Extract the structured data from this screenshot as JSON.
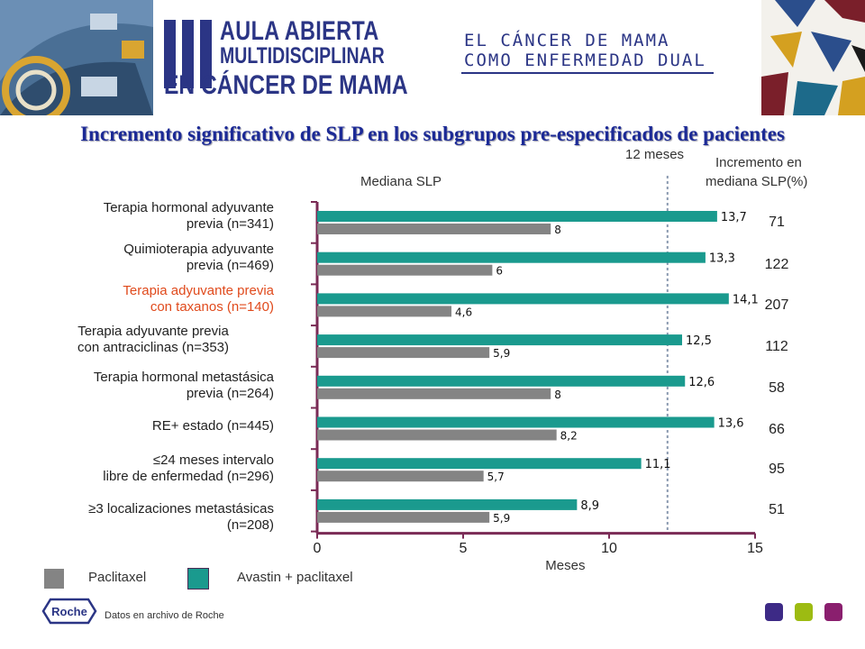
{
  "header": {
    "logo_line1": "AULA ABIERTA",
    "logo_line2": "MULTIDISCIPLINAR",
    "logo_line3": "EN CÁNCER DE MAMA",
    "conference_line1": "EL CÁNCER DE MAMA",
    "conference_line2": "COMO ENFERMEDAD DUAL"
  },
  "title": "Incremento significativo de SLP en los subgrupos pre-especificados de pacientes",
  "labels": {
    "mediana": "Mediana SLP",
    "reference": "12 meses",
    "increment_line1": "Incremento en",
    "increment_line2": "mediana SLP(%)"
  },
  "rows": [
    {
      "line1": "Terapia hormonal adyuvante",
      "line2": "previa (n=341)",
      "highlight": false,
      "increment": "71"
    },
    {
      "line1": "Quimioterapia adyuvante",
      "line2": "previa (n=469)",
      "highlight": false,
      "increment": "122"
    },
    {
      "line1": "Terapia adyuvante previa",
      "line2": "con taxanos (n=140)",
      "highlight": true,
      "increment": "207"
    },
    {
      "line1": "Terapia adyuvante previa",
      "line2": "con antraciclinas (n=353)",
      "highlight": false,
      "increment": "112"
    },
    {
      "line1": "Terapia hormonal metastásica",
      "line2": "previa (n=264)",
      "highlight": false,
      "increment": "58"
    },
    {
      "line1": "RE+ estado (n=445)",
      "line2": "",
      "highlight": false,
      "increment": "66"
    },
    {
      "line1": "≤24 meses intervalo",
      "line2": "libre de enfermedad (n=296)",
      "highlight": false,
      "increment": "95"
    },
    {
      "line1": "≥3 localizaciones metastásicas",
      "line2": "(n=208)",
      "highlight": false,
      "increment": "51"
    }
  ],
  "legend": {
    "paclitaxel": "Paclitaxel",
    "avastin": "Avastin + paclitaxel"
  },
  "footer": {
    "note": "Datos en archivo de Roche",
    "roche_logo": "Roche"
  },
  "colors": {
    "avastin": "#1a9a8e",
    "paclitaxel": "#848484",
    "axis": "#7a2a55",
    "title": "#1c2a96",
    "highlight": "#e04a1c",
    "square1": "#3d2a86",
    "square2": "#9dbb12",
    "square3": "#8a1f6e"
  },
  "chart_data": {
    "type": "bar",
    "orientation": "horizontal",
    "categories": [
      "Terapia hormonal adyuvante previa (n=341)",
      "Quimioterapia adyuvante previa (n=469)",
      "Terapia adyuvante previa con taxanos (n=140)",
      "Terapia adyuvante previa con antraciclinas (n=353)",
      "Terapia hormonal metastásica previa (n=264)",
      "RE+ estado (n=445)",
      "≤24 meses intervalo libre de enfermedad (n=296)",
      "≥3 localizaciones metastásicas (n=208)"
    ],
    "series": [
      {
        "name": "Avastin + paclitaxel",
        "values": [
          13.7,
          13.3,
          14.1,
          12.5,
          12.6,
          13.6,
          11.1,
          8.9
        ],
        "labels": [
          "13,7",
          "13,3",
          "14,1",
          "12,5",
          "12,6",
          "13,6",
          "11,1",
          "8,9"
        ]
      },
      {
        "name": "Paclitaxel",
        "values": [
          8,
          6,
          4.6,
          5.9,
          8,
          8.2,
          5.7,
          5.9
        ],
        "labels": [
          "8",
          "6",
          "4,6",
          "5,9",
          "8",
          "8,2",
          "5,7",
          "5,9"
        ]
      }
    ],
    "xlabel": "Meses",
    "xlim": [
      0,
      15
    ],
    "xticks": [
      "0",
      "5",
      "10",
      "15"
    ],
    "reference_line": {
      "x": 12,
      "label": "12 meses"
    },
    "title": "Mediana SLP",
    "grid": false,
    "legend_position": "bottom-left"
  }
}
